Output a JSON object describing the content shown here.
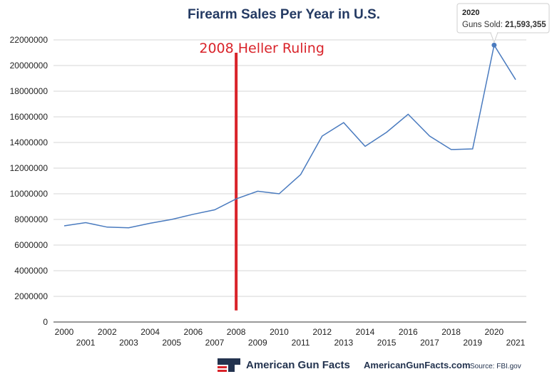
{
  "chart_data": {
    "type": "line",
    "title": "Firearm Sales Per Year in U.S.",
    "xlabel": "",
    "ylabel": "",
    "x": [
      "2000",
      "2001",
      "2002",
      "2003",
      "2004",
      "2005",
      "2006",
      "2007",
      "2008",
      "2009",
      "2010",
      "2011",
      "2012",
      "2013",
      "2014",
      "2015",
      "2016",
      "2017",
      "2018",
      "2019",
      "2020",
      "2021"
    ],
    "series": [
      {
        "values": [
          7500000,
          7750000,
          7400000,
          7350000,
          7700000,
          8000000,
          8400000,
          8750000,
          9600000,
          10200000,
          10000000,
          11500000,
          14500000,
          15550000,
          13700000,
          14800000,
          16200000,
          14500000,
          13450000,
          13500000,
          21593355,
          18900000
        ]
      }
    ],
    "ylim": [
      0,
      22000000
    ],
    "yticks": [
      "0",
      "2000000",
      "4000000",
      "6000000",
      "8000000",
      "10000000",
      "12000000",
      "14000000",
      "16000000",
      "18000000",
      "20000000",
      "22000000"
    ],
    "grid": "horizontal",
    "line_color": "#4a7bbf",
    "annotation": {
      "text": "2008 Heller Ruling",
      "x": "2008",
      "color": "#d9232a"
    },
    "tooltip": {
      "title": "2020",
      "label": "Guns Sold: ",
      "value": "21,593,355",
      "x": "2020"
    }
  },
  "footer": {
    "brand": "American Gun Facts",
    "site": "AmericanGunFacts.com",
    "source": "Source: FBI.gov",
    "logo_colors": [
      "#23334f",
      "#d9232a"
    ]
  }
}
